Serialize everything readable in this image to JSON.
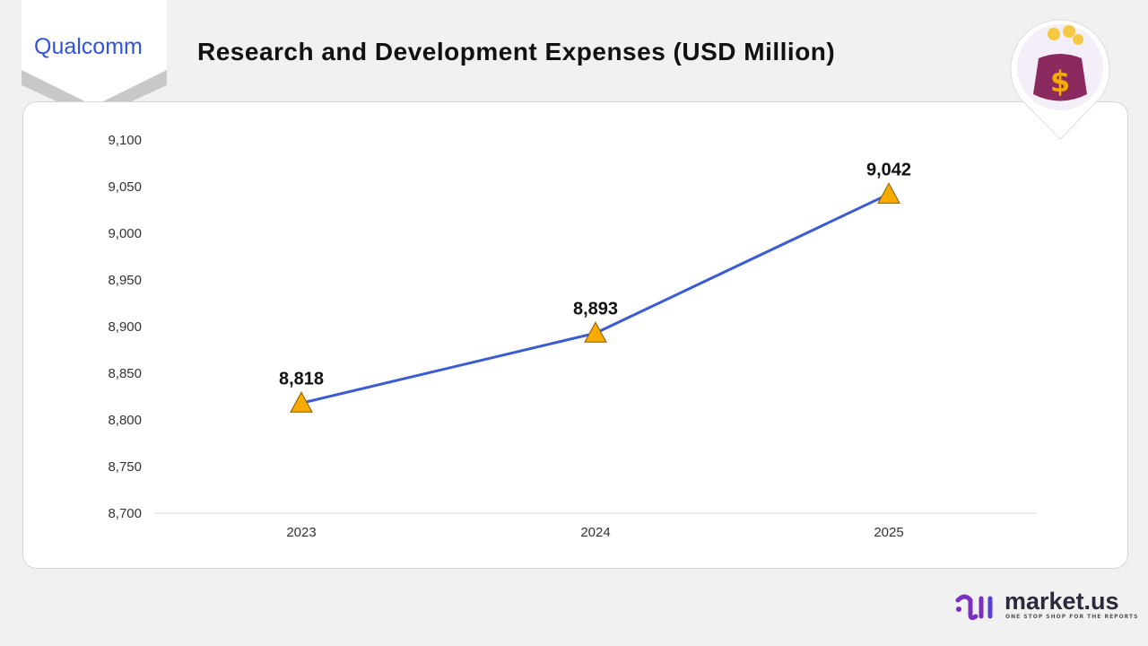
{
  "brand": {
    "company": "Qualcomm",
    "publisher": "market.us",
    "publisher_tagline": "ONE STOP SHOP FOR THE REPORTS"
  },
  "colors": {
    "line": "#3a5bd4",
    "marker": "#f5ab00",
    "logo": "#3253dc",
    "publisher_accent": "#7b2fbf"
  },
  "chart_data": {
    "type": "line",
    "title": "Research and Development Expenses (USD Million)",
    "categories": [
      "2023",
      "2024",
      "2025"
    ],
    "series": [
      {
        "values": [
          8818,
          8893,
          9042
        ],
        "marker": "triangle"
      }
    ],
    "data_labels": [
      "8,818",
      "8,893",
      "9,042"
    ],
    "ylim": [
      8700,
      9100
    ],
    "yticks": [
      "8,700",
      "8,750",
      "8,800",
      "8,850",
      "8,900",
      "8,950",
      "9,000",
      "9,050",
      "9,100"
    ],
    "grid": false
  }
}
